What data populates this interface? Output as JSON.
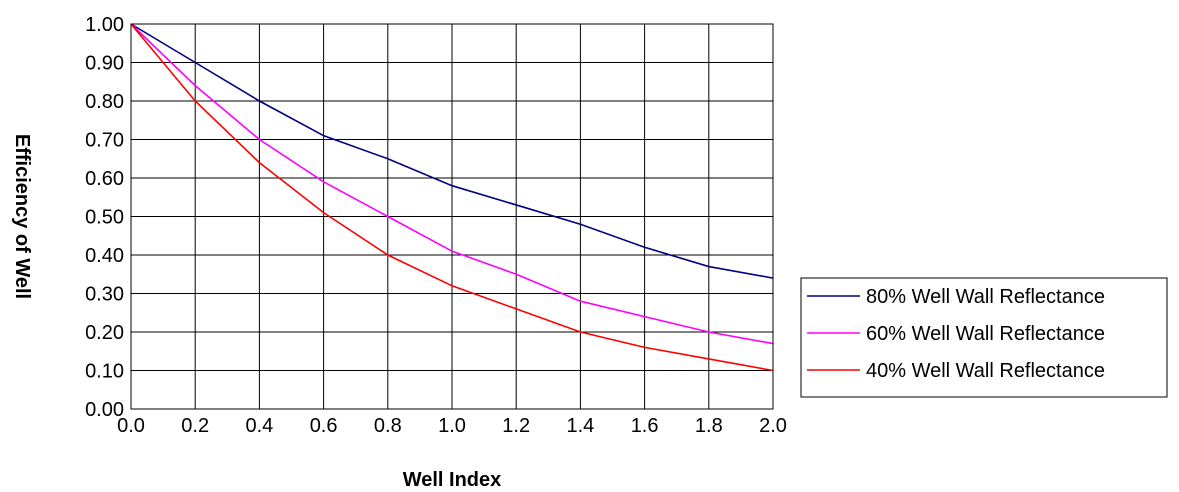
{
  "chart_data": {
    "type": "line",
    "title": "",
    "xlabel": "Well Index",
    "ylabel": "Efficiency of Well",
    "xlim": [
      0,
      2.0
    ],
    "ylim": [
      0,
      1.0
    ],
    "x_ticks": [
      "0.0",
      "0.2",
      "0.4",
      "0.6",
      "0.8",
      "1.0",
      "1.2",
      "1.4",
      "1.6",
      "1.8",
      "2.0"
    ],
    "y_ticks": [
      "0.00",
      "0.10",
      "0.20",
      "0.30",
      "0.40",
      "0.50",
      "0.60",
      "0.70",
      "0.80",
      "0.90",
      "1.00"
    ],
    "grid": true,
    "legend_position": "right",
    "x": [
      0.0,
      0.2,
      0.4,
      0.6,
      0.8,
      1.0,
      1.2,
      1.4,
      1.6,
      1.8,
      2.0
    ],
    "series": [
      {
        "name": "80% Well Wall Reflectance",
        "color": "#000080",
        "values": [
          1.0,
          0.9,
          0.8,
          0.71,
          0.65,
          0.58,
          0.53,
          0.48,
          0.42,
          0.37,
          0.34
        ]
      },
      {
        "name": "60% Well Wall Reflectance",
        "color": "#ff00ff",
        "values": [
          1.0,
          0.84,
          0.7,
          0.59,
          0.5,
          0.41,
          0.35,
          0.28,
          0.24,
          0.2,
          0.17
        ]
      },
      {
        "name": "40% Well Wall Reflectance",
        "color": "#ff0000",
        "values": [
          1.0,
          0.8,
          0.64,
          0.51,
          0.4,
          0.32,
          0.26,
          0.2,
          0.16,
          0.13,
          0.1
        ]
      }
    ]
  }
}
